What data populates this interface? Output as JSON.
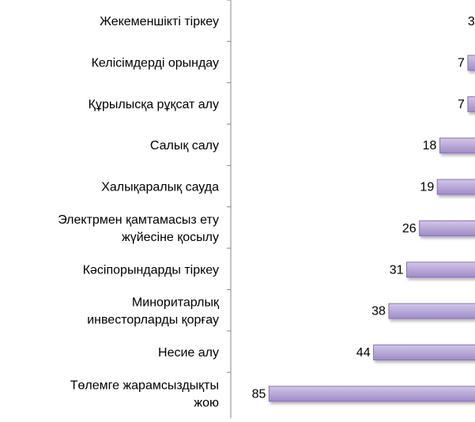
{
  "chart_data": {
    "type": "bar",
    "orientation": "horizontal",
    "categories": [
      "Жекеменшікті тіркеу",
      "Келісімдерді орындау",
      "Құрылысқа рұқсат алу",
      "Салық салу",
      "Халықаралық сауда",
      "Электрмен қамтамасыз ету жүйесіне қосылу",
      "Кәсіпорындарды тіркеу",
      "Миноритарлық инвесторларды қорғау",
      "Несие алу",
      "Төлемге жарамсыздықты жою"
    ],
    "label_lines": [
      [
        "Жекеменшікті тіркеу"
      ],
      [
        "Келісімдерді орындау"
      ],
      [
        "Құрылысқа рұқсат алу"
      ],
      [
        "Салық салу"
      ],
      [
        "Халықаралық сауда"
      ],
      [
        "Электрмен қамтамасыз ету",
        "жүйесіне қосылу"
      ],
      [
        "Кәсіпорындарды тіркеу"
      ],
      [
        "Миноритарлық",
        "инвесторларды қорғау"
      ],
      [
        "Несие алу"
      ],
      [
        "Төлемге жарамсыздықты",
        "жою"
      ]
    ],
    "values": [
      3,
      7,
      7,
      18,
      19,
      26,
      31,
      38,
      44,
      85
    ],
    "data_labels": [
      "3",
      "7",
      "7",
      "18",
      "19",
      "26",
      "31",
      "38",
      "44",
      "85"
    ],
    "axis": "reversed",
    "xlim": [
      0,
      100
    ],
    "grid": false,
    "legend": "none",
    "colors": {
      "bar_fill_top": "#d3c6ea",
      "bar_fill_bottom": "#9f8cc6",
      "bar_stroke": "#8574b0",
      "axis": "#868686",
      "text": "#000000"
    }
  }
}
